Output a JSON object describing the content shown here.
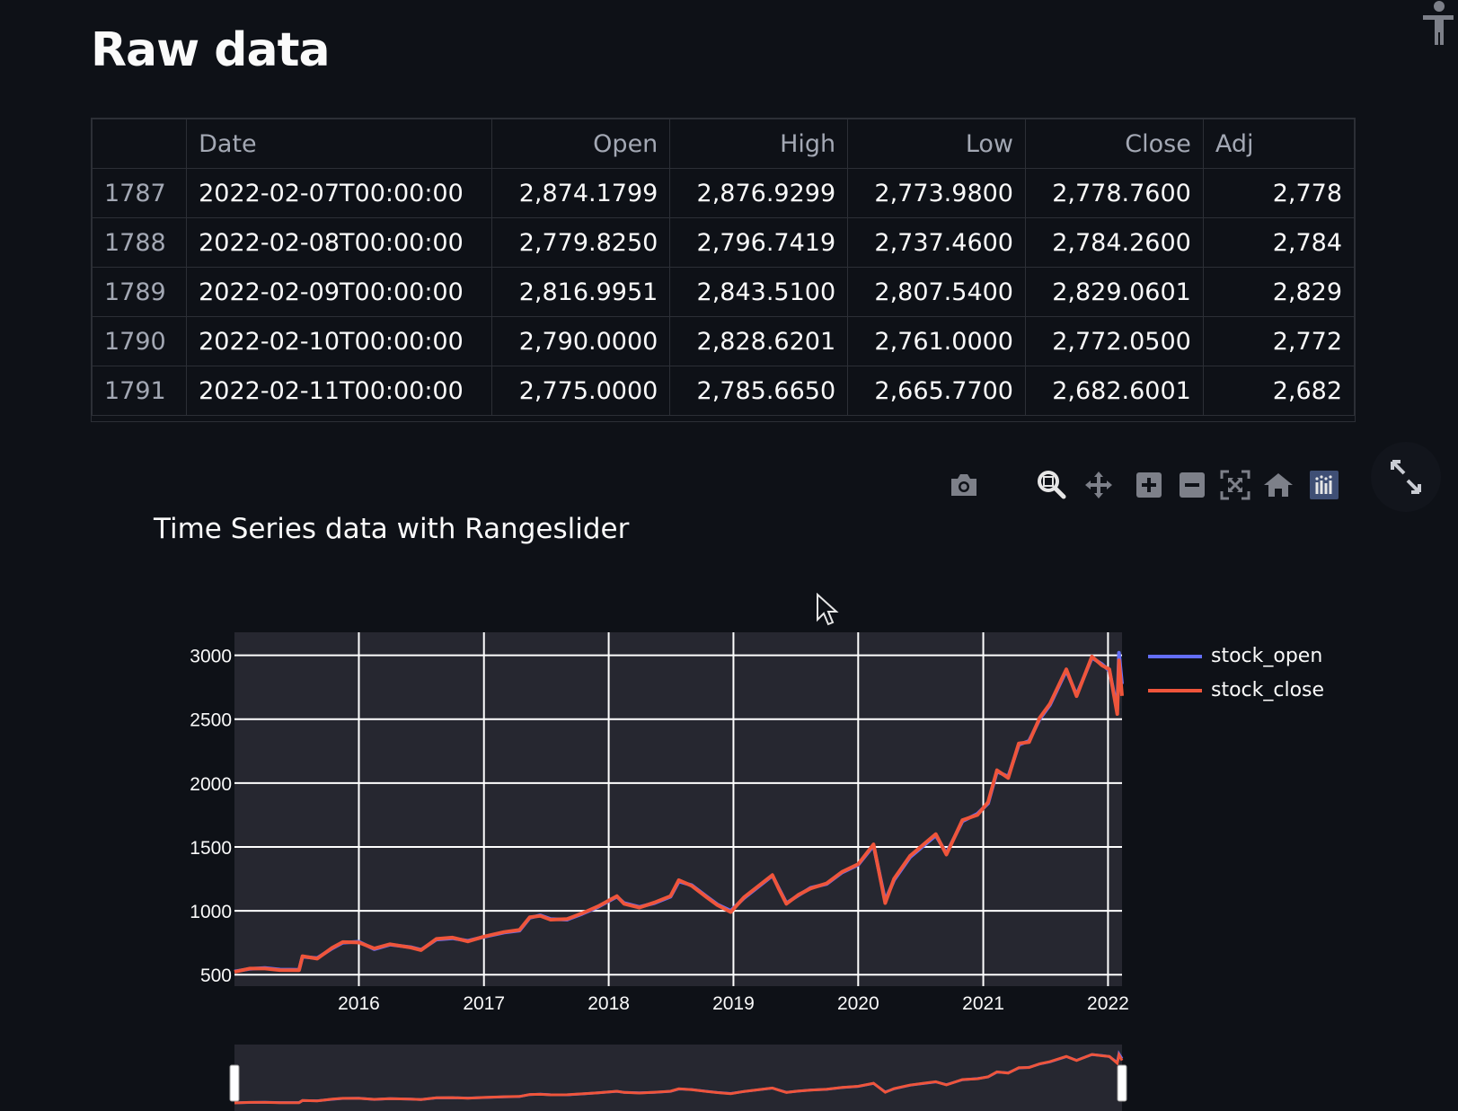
{
  "page": {
    "title": "Raw data"
  },
  "table": {
    "headers": [
      "",
      "Date",
      "Open",
      "High",
      "Low",
      "Close",
      "Adj"
    ],
    "rows": [
      {
        "idx": "1787",
        "date": "2022-02-07T00:00:00",
        "open": "2,874.1799",
        "high": "2,876.9299",
        "low": "2,773.9800",
        "close": "2,778.7600",
        "adj": "2,778"
      },
      {
        "idx": "1788",
        "date": "2022-02-08T00:00:00",
        "open": "2,779.8250",
        "high": "2,796.7419",
        "low": "2,737.4600",
        "close": "2,784.2600",
        "adj": "2,784"
      },
      {
        "idx": "1789",
        "date": "2022-02-09T00:00:00",
        "open": "2,816.9951",
        "high": "2,843.5100",
        "low": "2,807.5400",
        "close": "2,829.0601",
        "adj": "2,829"
      },
      {
        "idx": "1790",
        "date": "2022-02-10T00:00:00",
        "open": "2,790.0000",
        "high": "2,828.6201",
        "low": "2,761.0000",
        "close": "2,772.0500",
        "adj": "2,772"
      },
      {
        "idx": "1791",
        "date": "2022-02-11T00:00:00",
        "open": "2,775.0000",
        "high": "2,785.6650",
        "low": "2,665.7700",
        "close": "2,682.6001",
        "adj": "2,682"
      }
    ]
  },
  "modebar": {
    "buttons": [
      "camera-icon",
      "zoom-icon",
      "pan-icon",
      "zoom-in-icon",
      "zoom-out-icon",
      "autoscale-icon",
      "reset-axes-icon",
      "plotly-logo-icon"
    ]
  },
  "chart_data": {
    "type": "line",
    "title": "Time Series data with Rangeslider",
    "xlabel": "",
    "ylabel": "",
    "x_ticks": [
      "2016",
      "2017",
      "2018",
      "2019",
      "2020",
      "2021",
      "2022"
    ],
    "y_ticks": [
      500,
      1000,
      1500,
      2000,
      2500,
      3000
    ],
    "xlim": [
      "2015-01-02",
      "2022-02-11"
    ],
    "ylim": [
      410,
      3180
    ],
    "grid": true,
    "legend_position": "right",
    "rangeslider": true,
    "series": [
      {
        "name": "stock_open",
        "color": "#636efa",
        "points": [
          [
            "2015-01-02",
            525
          ],
          [
            "2015-02-15",
            545
          ],
          [
            "2015-04-01",
            552
          ],
          [
            "2015-05-15",
            540
          ],
          [
            "2015-07-10",
            538
          ],
          [
            "2015-07-20",
            640
          ],
          [
            "2015-09-01",
            630
          ],
          [
            "2015-10-15",
            705
          ],
          [
            "2015-11-15",
            750
          ],
          [
            "2016-01-01",
            758
          ],
          [
            "2016-02-15",
            700
          ],
          [
            "2016-04-01",
            735
          ],
          [
            "2016-06-01",
            715
          ],
          [
            "2016-07-01",
            695
          ],
          [
            "2016-08-15",
            775
          ],
          [
            "2016-10-01",
            785
          ],
          [
            "2016-11-15",
            765
          ],
          [
            "2017-01-01",
            795
          ],
          [
            "2017-03-01",
            830
          ],
          [
            "2017-04-15",
            845
          ],
          [
            "2017-05-15",
            945
          ],
          [
            "2017-06-15",
            965
          ],
          [
            "2017-07-15",
            935
          ],
          [
            "2017-09-01",
            930
          ],
          [
            "2017-10-15",
            975
          ],
          [
            "2017-12-01",
            1030
          ],
          [
            "2018-01-25",
            1110
          ],
          [
            "2018-02-15",
            1060
          ],
          [
            "2018-04-01",
            1030
          ],
          [
            "2018-05-15",
            1060
          ],
          [
            "2018-07-01",
            1110
          ],
          [
            "2018-07-25",
            1230
          ],
          [
            "2018-09-01",
            1200
          ],
          [
            "2018-10-15",
            1110
          ],
          [
            "2018-11-15",
            1050
          ],
          [
            "2018-12-24",
            1000
          ],
          [
            "2019-02-01",
            1100
          ],
          [
            "2019-04-25",
            1275
          ],
          [
            "2019-05-15",
            1170
          ],
          [
            "2019-06-05",
            1060
          ],
          [
            "2019-07-10",
            1120
          ],
          [
            "2019-08-15",
            1180
          ],
          [
            "2019-10-01",
            1210
          ],
          [
            "2019-11-15",
            1300
          ],
          [
            "2020-01-01",
            1360
          ],
          [
            "2020-02-15",
            1510
          ],
          [
            "2020-03-20",
            1080
          ],
          [
            "2020-04-15",
            1240
          ],
          [
            "2020-06-01",
            1420
          ],
          [
            "2020-07-15",
            1520
          ],
          [
            "2020-08-15",
            1590
          ],
          [
            "2020-09-15",
            1450
          ],
          [
            "2020-11-01",
            1700
          ],
          [
            "2020-12-15",
            1760
          ],
          [
            "2021-01-15",
            1840
          ],
          [
            "2021-02-10",
            2090
          ],
          [
            "2021-03-15",
            2050
          ],
          [
            "2021-04-15",
            2300
          ],
          [
            "2021-05-15",
            2330
          ],
          [
            "2021-06-15",
            2500
          ],
          [
            "2021-07-15",
            2610
          ],
          [
            "2021-09-01",
            2880
          ],
          [
            "2021-10-01",
            2690
          ],
          [
            "2021-11-15",
            2980
          ],
          [
            "2021-12-15",
            2930
          ],
          [
            "2022-01-05",
            2880
          ],
          [
            "2022-01-28",
            2580
          ],
          [
            "2022-02-02",
            3020
          ],
          [
            "2022-02-11",
            2775
          ]
        ]
      },
      {
        "name": "stock_close",
        "color": "#ef553b",
        "points": [
          [
            "2015-01-02",
            522
          ],
          [
            "2015-02-15",
            548
          ],
          [
            "2015-04-01",
            548
          ],
          [
            "2015-05-15",
            536
          ],
          [
            "2015-07-10",
            535
          ],
          [
            "2015-07-20",
            645
          ],
          [
            "2015-09-01",
            625
          ],
          [
            "2015-10-15",
            710
          ],
          [
            "2015-11-15",
            755
          ],
          [
            "2016-01-01",
            752
          ],
          [
            "2016-02-15",
            705
          ],
          [
            "2016-04-01",
            738
          ],
          [
            "2016-06-01",
            712
          ],
          [
            "2016-07-01",
            692
          ],
          [
            "2016-08-15",
            780
          ],
          [
            "2016-10-01",
            790
          ],
          [
            "2016-11-15",
            760
          ],
          [
            "2017-01-01",
            798
          ],
          [
            "2017-03-01",
            834
          ],
          [
            "2017-04-15",
            850
          ],
          [
            "2017-05-15",
            950
          ],
          [
            "2017-06-15",
            960
          ],
          [
            "2017-07-15",
            930
          ],
          [
            "2017-09-01",
            935
          ],
          [
            "2017-10-15",
            980
          ],
          [
            "2017-12-01",
            1035
          ],
          [
            "2018-01-25",
            1115
          ],
          [
            "2018-02-15",
            1055
          ],
          [
            "2018-04-01",
            1025
          ],
          [
            "2018-05-15",
            1065
          ],
          [
            "2018-07-01",
            1115
          ],
          [
            "2018-07-25",
            1240
          ],
          [
            "2018-09-01",
            1195
          ],
          [
            "2018-10-15",
            1105
          ],
          [
            "2018-11-15",
            1045
          ],
          [
            "2018-12-24",
            990
          ],
          [
            "2019-02-01",
            1105
          ],
          [
            "2019-04-25",
            1280
          ],
          [
            "2019-05-15",
            1165
          ],
          [
            "2019-06-05",
            1055
          ],
          [
            "2019-07-10",
            1125
          ],
          [
            "2019-08-15",
            1175
          ],
          [
            "2019-10-01",
            1215
          ],
          [
            "2019-11-15",
            1305
          ],
          [
            "2020-01-01",
            1365
          ],
          [
            "2020-02-15",
            1520
          ],
          [
            "2020-03-20",
            1060
          ],
          [
            "2020-04-15",
            1250
          ],
          [
            "2020-06-01",
            1430
          ],
          [
            "2020-07-15",
            1530
          ],
          [
            "2020-08-15",
            1600
          ],
          [
            "2020-09-15",
            1440
          ],
          [
            "2020-11-01",
            1710
          ],
          [
            "2020-12-15",
            1750
          ],
          [
            "2021-01-15",
            1850
          ],
          [
            "2021-02-10",
            2100
          ],
          [
            "2021-03-15",
            2040
          ],
          [
            "2021-04-15",
            2310
          ],
          [
            "2021-05-15",
            2320
          ],
          [
            "2021-06-15",
            2510
          ],
          [
            "2021-07-15",
            2620
          ],
          [
            "2021-09-01",
            2890
          ],
          [
            "2021-10-01",
            2680
          ],
          [
            "2021-11-15",
            2990
          ],
          [
            "2021-12-15",
            2920
          ],
          [
            "2022-01-05",
            2890
          ],
          [
            "2022-01-28",
            2540
          ],
          [
            "2022-02-02",
            2960
          ],
          [
            "2022-02-11",
            2682
          ]
        ]
      }
    ]
  }
}
